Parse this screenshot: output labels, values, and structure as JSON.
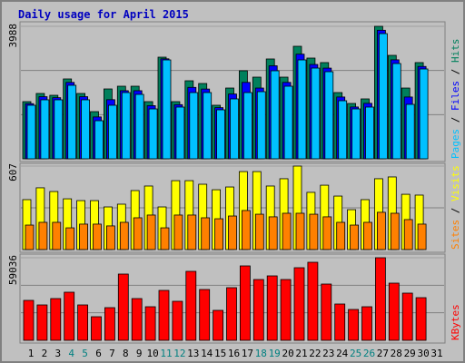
{
  "chart_data": [
    {
      "type": "bar",
      "title": "Daily usage for April 2015",
      "ylim": [
        0,
        3988
      ],
      "yticks": [
        3988
      ],
      "separator": " / ",
      "series": [
        {
          "name": "Hits",
          "color": "#00805c",
          "values": [
            1721,
            1967,
            1912,
            2404,
            1967,
            1420,
            2103,
            2185,
            2185,
            1721,
            3059,
            1721,
            2349,
            2267,
            1612,
            2130,
            2650,
            2458,
            3005,
            2458,
            3387,
            3032,
            2896,
            1994,
            1666,
            1803,
            3988,
            3114,
            2130,
            2896,
            0
          ]
        },
        {
          "name": "Files",
          "color": "#0000ff",
          "values": [
            1660,
            1870,
            1840,
            2300,
            1870,
            1260,
            1780,
            2050,
            2050,
            1600,
            3010,
            1630,
            2150,
            2100,
            1540,
            1950,
            2300,
            2130,
            2800,
            2300,
            3150,
            2840,
            2730,
            1860,
            1560,
            1670,
            3870,
            2980,
            1860,
            2780,
            0
          ]
        },
        {
          "name": "Pages",
          "color": "#00c0ff",
          "values": [
            1612,
            1776,
            1776,
            2213,
            1776,
            1147,
            1612,
            1994,
            1939,
            1502,
            2977,
            1557,
            1994,
            1994,
            1475,
            1803,
            1994,
            2021,
            2650,
            2185,
            2977,
            2731,
            2622,
            1748,
            1502,
            1557,
            3769,
            2868,
            1639,
            2704,
            0
          ]
        }
      ]
    },
    {
      "type": "bar",
      "ylim": [
        0,
        607
      ],
      "yticks": [
        607
      ],
      "separator": " / ",
      "series": [
        {
          "name": "Visits",
          "color": "#ffff00",
          "values": [
            363,
            449,
            422,
            369,
            356,
            356,
            310,
            330,
            429,
            462,
            310,
            501,
            501,
            475,
            435,
            455,
            567,
            567,
            462,
            515,
            607,
            416,
            468,
            389,
            290,
            363,
            515,
            528,
            402,
            396,
            0
          ]
        },
        {
          "name": "Sites",
          "color": "#ff8000",
          "values": [
            178,
            198,
            198,
            158,
            185,
            185,
            172,
            198,
            231,
            251,
            158,
            251,
            251,
            231,
            224,
            244,
            284,
            257,
            238,
            264,
            264,
            257,
            238,
            198,
            178,
            198,
            271,
            264,
            218,
            185,
            0
          ]
        }
      ]
    },
    {
      "type": "bar",
      "ylim": [
        0,
        59036
      ],
      "yticks": [
        59036
      ],
      "categories": [
        "1",
        "2",
        "3",
        "4",
        "5",
        "6",
        "7",
        "8",
        "9",
        "10",
        "11",
        "12",
        "13",
        "14",
        "15",
        "16",
        "17",
        "18",
        "19",
        "20",
        "21",
        "22",
        "23",
        "24",
        "25",
        "26",
        "27",
        "28",
        "29",
        "30",
        "31"
      ],
      "label_colors": [
        "#000000",
        "#000000",
        "#000000",
        "#008080",
        "#008080",
        "#000000",
        "#000000",
        "#000000",
        "#000000",
        "#000000",
        "#008080",
        "#008080",
        "#000000",
        "#000000",
        "#000000",
        "#000000",
        "#000000",
        "#008080",
        "#008080",
        "#000000",
        "#000000",
        "#000000",
        "#000000",
        "#000000",
        "#008080",
        "#008080",
        "#000000",
        "#000000",
        "#000000",
        "#000000",
        "#000000"
      ],
      "series": [
        {
          "name": "KBytes",
          "color": "#ff0000",
          "values": [
            28545,
            25301,
            29843,
            34384,
            25301,
            16867,
            23355,
            47359,
            29843,
            24004,
            35681,
            27896,
            49305,
            36330,
            21409,
            37627,
            53197,
            43466,
            46061,
            43466,
            51900,
            55792,
            40222,
            25950,
            22057,
            24004,
            59036,
            40871,
            33734,
            30491,
            0
          ]
        }
      ]
    }
  ]
}
